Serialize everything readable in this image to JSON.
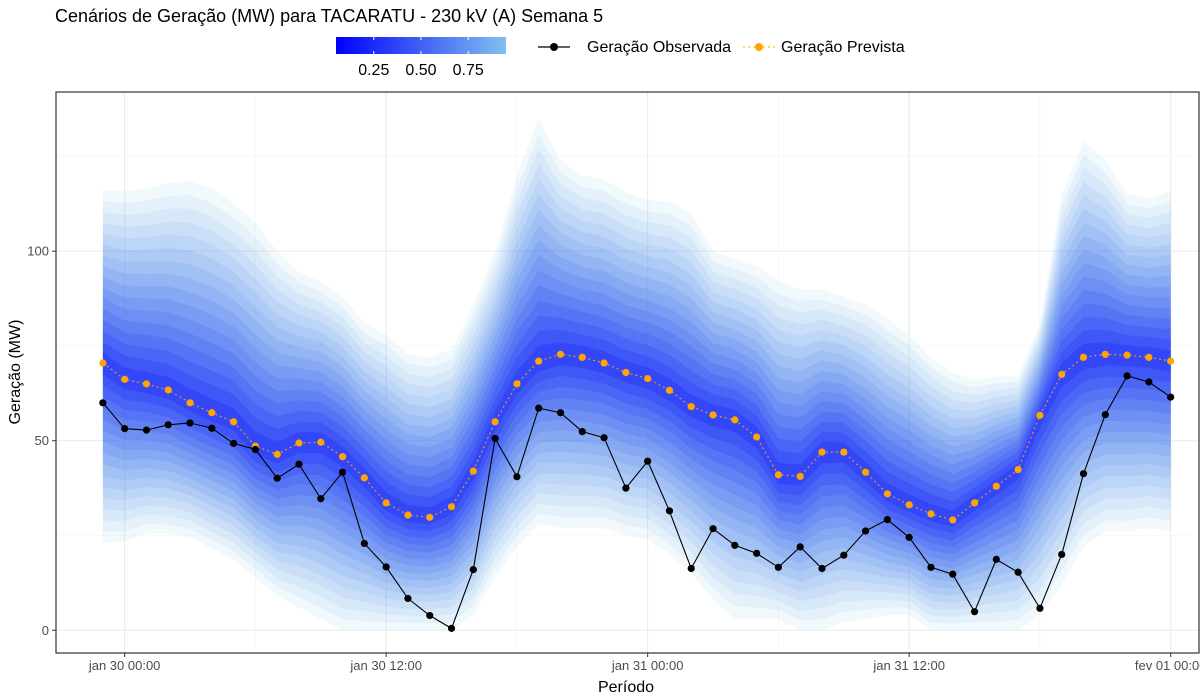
{
  "chart_data": {
    "type": "line",
    "title": "Cenários de Geração (MW) para TACARATU - 230 kV (A) Semana 5",
    "xlabel": "Período",
    "ylabel": "Geração (MW)",
    "x_tick_labels": [
      "jan 30 00:00",
      "jan 30 12:00",
      "jan 31 00:00",
      "jan 31 12:00",
      "fev 01 00:00"
    ],
    "x_ticks_hours": [
      0,
      12,
      24,
      36,
      48
    ],
    "x_start_hour": -1,
    "x_step_hours": 1,
    "xlim_hours": [
      -3.15,
      49.3
    ],
    "y_ticks": [
      0,
      50,
      100
    ],
    "y_tick_labels": [
      "0",
      "50",
      "100"
    ],
    "ylim": [
      -6,
      142
    ],
    "grid": true,
    "legend_position": "top",
    "colorbar": {
      "tick_labels": [
        "0.25",
        "0.50",
        "0.75"
      ],
      "tick_values": [
        0.25,
        0.5,
        0.75
      ],
      "range": [
        0.05,
        0.95
      ],
      "color_low": "#0000ff",
      "color_high": "#80c1ee"
    },
    "series": [
      {
        "name": "Geração Observada",
        "color": "#000000",
        "values": [
          60,
          53.2,
          52.8,
          54.2,
          54.7,
          53.3,
          49.3,
          47.7,
          40.1,
          43.8,
          34.7,
          41.7,
          22.9,
          16.7,
          8.4,
          3.9,
          0.5,
          16,
          50.6,
          40.5,
          58.6,
          57.4,
          52.4,
          50.8,
          37.5,
          44.6,
          31.5,
          16.3,
          26.8,
          22.4,
          20.3,
          16.6,
          22,
          16.3,
          19.8,
          26.2,
          29.2,
          24.5,
          16.6,
          14.8,
          4.9,
          18.7,
          15.3,
          5.8,
          20,
          41.3,
          56.9,
          67.1,
          65.5,
          61.5
        ]
      },
      {
        "name": "Geração Prevista",
        "color": "#ffa500",
        "values": [
          70.5,
          66.2,
          65,
          63.4,
          60,
          57.4,
          55,
          48.6,
          46.4,
          49.4,
          49.6,
          45.8,
          40.2,
          33.6,
          30.4,
          29.8,
          32.6,
          42,
          55,
          65,
          71,
          72.8,
          72,
          70.5,
          68,
          66.4,
          63.3,
          59,
          56.8,
          55.5,
          51,
          41,
          40.6,
          47,
          47,
          41.7,
          36,
          33.1,
          30.7,
          29.1,
          33.6,
          38,
          42.4,
          56.7,
          67.5,
          72,
          72.8,
          72.6,
          72,
          71
        ]
      }
    ],
    "scenario_band": {
      "q05": [
        23,
        23.5,
        25.5,
        25.5,
        24.5,
        21.5,
        18.5,
        14,
        9,
        6,
        3,
        0,
        0,
        0,
        0,
        0,
        0,
        4,
        14,
        22,
        28,
        27,
        27,
        27,
        25,
        24,
        20,
        15,
        8,
        3,
        3,
        3,
        0,
        0,
        2,
        3,
        4,
        4,
        0,
        0,
        0,
        0,
        0,
        4,
        12,
        22,
        26,
        26,
        27,
        26
      ],
      "q95": [
        116,
        115.8,
        116.5,
        118,
        118.5,
        116.5,
        112.5,
        107.5,
        100,
        94.5,
        92,
        88,
        81,
        78,
        73,
        72,
        74,
        86,
        100,
        120,
        135,
        124,
        120,
        119,
        115.5,
        113.5,
        113,
        110,
        100,
        98,
        96,
        92,
        90,
        90,
        88,
        86,
        82,
        78,
        72,
        68,
        66,
        67,
        67,
        81,
        115,
        129,
        124,
        115,
        114,
        116
      ]
    }
  }
}
